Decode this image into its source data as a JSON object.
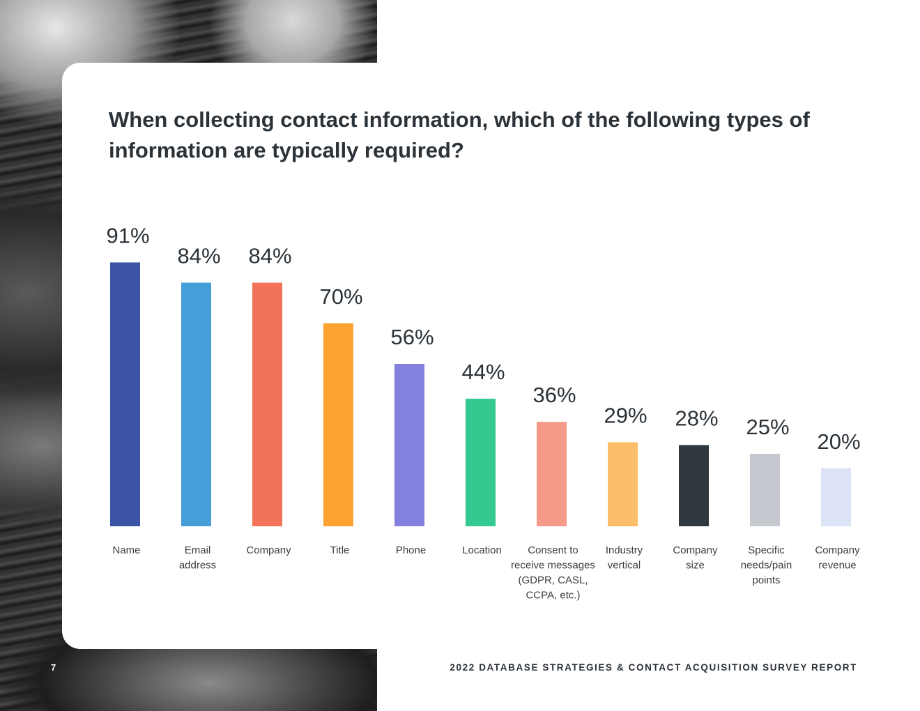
{
  "page": {
    "number": "7",
    "report_title": "2022 DATABASE STRATEGIES & CONTACT ACQUISITION SURVEY REPORT"
  },
  "chart_data": {
    "type": "bar",
    "title": "When collecting contact information, which of the following types of information are typically required?",
    "categories": [
      [
        "Name"
      ],
      [
        "Email",
        "address"
      ],
      [
        "Company"
      ],
      [
        "Title"
      ],
      [
        "Phone"
      ],
      [
        "Location"
      ],
      [
        "Consent to",
        "receive messages",
        "(GDPR, CASL,",
        "CCPA, etc.)"
      ],
      [
        "Industry",
        "vertical"
      ],
      [
        "Company",
        "size"
      ],
      [
        "Specific",
        "needs/pain",
        "points"
      ],
      [
        "Company",
        "revenue"
      ]
    ],
    "values": [
      91,
      84,
      84,
      70,
      56,
      44,
      36,
      29,
      28,
      25,
      20
    ],
    "value_labels": [
      "91%",
      "84%",
      "84%",
      "70%",
      "56%",
      "44%",
      "36%",
      "29%",
      "28%",
      "25%",
      "20%"
    ],
    "colors": [
      "#3b54a5",
      "#469ed9",
      "#f3725a",
      "#fca331",
      "#8380e0",
      "#34c98f",
      "#f59a89",
      "#fdbe6b",
      "#2f383f",
      "#c5c8cf",
      "#dce3f6"
    ],
    "ylim": [
      0,
      100
    ],
    "grid": false,
    "legend": "none"
  }
}
